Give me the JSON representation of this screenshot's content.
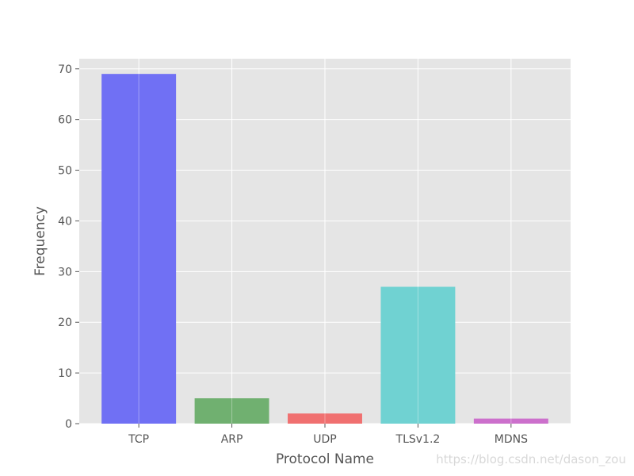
{
  "chart_data": {
    "type": "bar",
    "title": "",
    "xlabel": "Protocol Name",
    "ylabel": "Frequency",
    "categories": [
      "TCP",
      "ARP",
      "UDP",
      "TLSv1.2",
      "MDNS"
    ],
    "values": [
      69,
      5,
      2,
      27,
      1
    ],
    "colors": [
      "#7070f4",
      "#70b070",
      "#f07070",
      "#70d2d2",
      "#cc70cc"
    ],
    "ylim": [
      0,
      72
    ],
    "yticks": [
      0,
      10,
      20,
      30,
      40,
      50,
      60,
      70
    ],
    "grid": true,
    "style": "ggplot"
  },
  "watermark": "https://blog.csdn.net/dason_zou"
}
